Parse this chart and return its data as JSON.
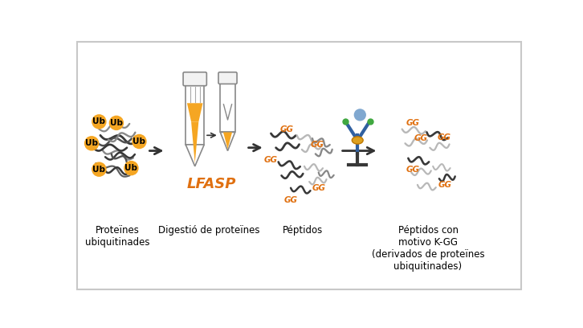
{
  "background_color": "#ffffff",
  "border_color": "#c8c8c8",
  "orange": "#F5A623",
  "dark_orange": "#E07010",
  "gray": "#888888",
  "dark_gray": "#383838",
  "light_gray": "#b8b8b8",
  "arrow_color": "#333333",
  "labels": {
    "step1": "Proteïnes\nubiquitinades",
    "step2": "Digestió de proteïnes",
    "step3": "Péptidos",
    "step4": "Péptidos con\nmotivo K-GG\n(derivados de proteïnes\nubiquitinades)",
    "lfasp": "LFASP",
    "ub": "Ub",
    "gg": "GG"
  },
  "label_fontsize": 8.5,
  "lfasp_fontsize": 13,
  "ub_fontsize": 7.5,
  "gg_fontsize": 7.5
}
